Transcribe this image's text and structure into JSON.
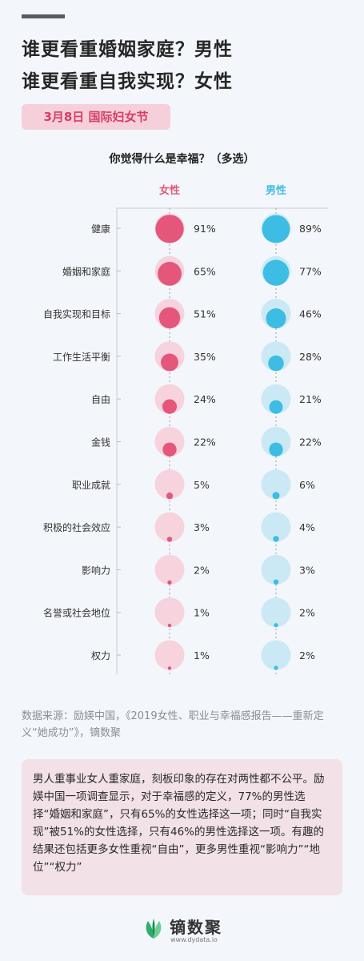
{
  "header": {
    "title_line1": "谁更看重婚姻家庭？男性",
    "title_line2": "谁更看重自我实现？女性",
    "tag": "3月8日  国际妇女节"
  },
  "chart_data": {
    "type": "bubble",
    "title": "你觉得什么是幸福？（多选）",
    "columns": [
      "女性",
      "男性"
    ],
    "categories": [
      "健康",
      "婚姻和家庭",
      "自我实现和目标",
      "工作生活平衡",
      "自由",
      "金钱",
      "职业成就",
      "积极的社会效应",
      "影响力",
      "名誉或社会地位",
      "权力"
    ],
    "series": [
      {
        "name": "女性",
        "values": [
          91,
          65,
          51,
          35,
          24,
          22,
          5,
          3,
          2,
          1,
          1
        ],
        "labels": [
          "91%",
          "65%",
          "51%",
          "35%",
          "24%",
          "22%",
          "5%",
          "3%",
          "2%",
          "1%",
          "1%"
        ],
        "color": "#e4577a",
        "bg_color": "#f6d3dd"
      },
      {
        "name": "男性",
        "values": [
          89,
          77,
          46,
          28,
          21,
          22,
          6,
          4,
          3,
          2,
          2
        ],
        "labels": [
          "89%",
          "77%",
          "46%",
          "28%",
          "21%",
          "22%",
          "6%",
          "4%",
          "3%",
          "2%",
          "2%"
        ],
        "color": "#3dbde3",
        "bg_color": "#cbe9f4"
      }
    ]
  },
  "source": "数据来源：励媖中国，《2019女性、职业与幸福感报告——重新定义“她成功”》，镝数聚",
  "summary": "男人重事业女人重家庭，刻板印象的存在对两性都不公平。励媖中国一项调查显示，对于幸福感的定义，77%的男性选择“婚姻和家庭”，只有65%的女性选择这一项；同时“自我实现”被51%的女性选择，只有46%的男性选择这一项。有趣的结果还包括更多女性重视“自由”，更多男性重视“影响力”“地位”“权力”",
  "footer": {
    "brand": "镝数聚",
    "url": "www.dydata.io"
  }
}
